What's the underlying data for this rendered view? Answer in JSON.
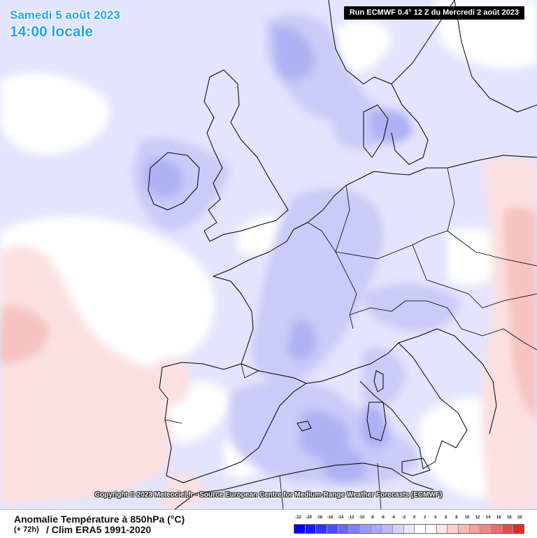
{
  "header": {
    "date": "Samedi 5 août 2023",
    "time": "14:00 locale",
    "run": "Run ECMWF 0.4° 12 Z du Mercredi 2 août 2023"
  },
  "copyright": "Copyright © 2023 Meteociel.fr - Source European Centre for Medium-Range Weather Forecasts (ECMWF)",
  "footer": {
    "title": "Anomalie Température à 850hPa (°C)",
    "lead": "(+ 72h)",
    "clim": "/ Clim ERA5 1991-2020"
  },
  "legend": {
    "labels": [
      "-22",
      "-20",
      "-18",
      "-16",
      "-14",
      "-12",
      "-10",
      "-8",
      "-6",
      "-4",
      "-2",
      "0",
      "2",
      "4",
      "6",
      "8",
      "10",
      "12",
      "14",
      "16",
      "18",
      "20"
    ],
    "colors": [
      "#0000ff",
      "#1a1aff",
      "#3333ff",
      "#4d4dff",
      "#6666ff",
      "#7f7fff",
      "#9999ff",
      "#a9a9f7",
      "#bcbcf8",
      "#d4d4fb",
      "#e7e7fd",
      "#ffffff",
      "#ffffff",
      "#fde3e3",
      "#fbd0d0",
      "#f9b9b9",
      "#f7a0a0",
      "#f38686",
      "#ef6a6a",
      "#e94a4a",
      "#e42828"
    ]
  },
  "colors": {
    "title_blue": "#1ea3ff",
    "sea_light": "#e3e4fd",
    "land_blue": "#c9cbf8",
    "deep_blue": "#aeb1f2",
    "warm": "#fbe0e0",
    "warm2": "#f6c2c2"
  }
}
